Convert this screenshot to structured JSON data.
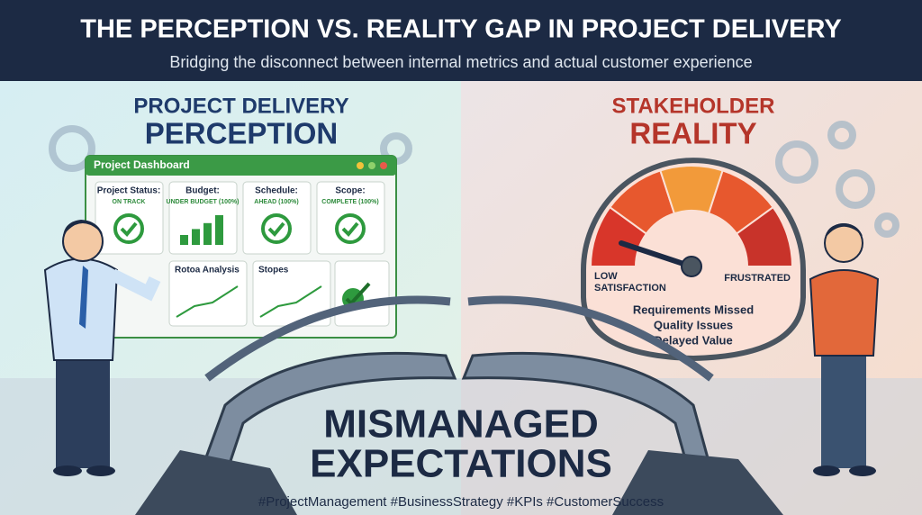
{
  "header": {
    "title": "THE PERCEPTION VS. REALITY GAP IN PROJECT DELIVERY",
    "subtitle": "Bridging the disconnect between internal metrics and actual customer experience"
  },
  "perception": {
    "heading_line1": "PROJECT DELIVERY",
    "heading_line2": "PERCEPTION",
    "dashboard": {
      "title": "Project Dashboard",
      "cards": [
        {
          "label": "Project Status:",
          "status": "ON TRACK"
        },
        {
          "label": "Budget:",
          "status": "UNDER BUDGET (100%)"
        },
        {
          "label": "Schedule:",
          "status": "AHEAD (100%)"
        },
        {
          "label": "Scope:",
          "status": "COMPLETE (100%)"
        }
      ],
      "panels": [
        "Rotoa Analysis",
        "Stopes"
      ]
    }
  },
  "reality": {
    "heading_line1": "STAKEHOLDER",
    "heading_line2": "REALITY",
    "gauge": {
      "low_label_line1": "LOW",
      "low_label_line2": "SATISFACTION",
      "high_label": "FRUSTRATED"
    },
    "issues": [
      "Requirements Missed",
      "Quality Issues",
      "Delayed Value"
    ]
  },
  "center": {
    "line1": "MISMANAGED",
    "line2": "EXPECTATIONS"
  },
  "footer": {
    "hashtags": "#ProjectManagement #BusinessStrategy #KPIs #CustomerSuccess"
  }
}
